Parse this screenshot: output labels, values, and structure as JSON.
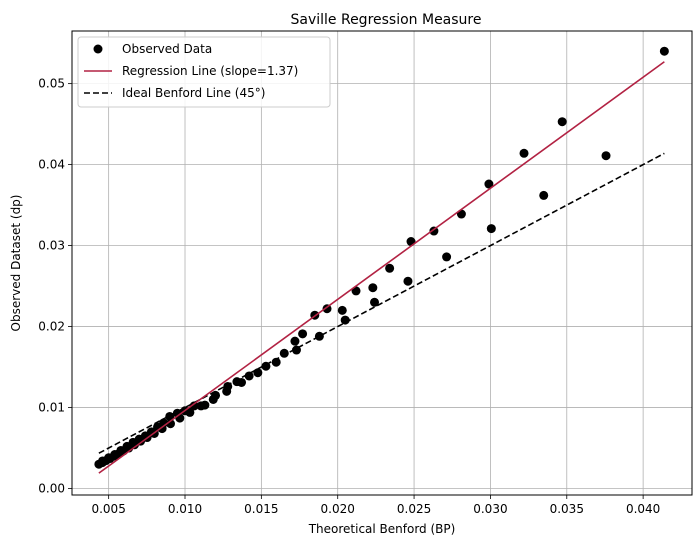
{
  "chart_data": {
    "type": "scatter",
    "title": "Saville Regression Measure",
    "xlabel": "Theoretical Benford (BP)",
    "ylabel": "Observed Dataset (dp)",
    "xlim": [
      0.0026,
      0.0432
    ],
    "ylim": [
      -0.0008,
      0.0565
    ],
    "xticks": [
      0.005,
      0.01,
      0.015,
      0.02,
      0.025,
      0.03,
      0.035,
      0.04
    ],
    "xtick_labels": [
      "0.005",
      "0.010",
      "0.015",
      "0.020",
      "0.025",
      "0.030",
      "0.035",
      "0.040"
    ],
    "yticks": [
      0.0,
      0.01,
      0.02,
      0.03,
      0.04,
      0.05
    ],
    "ytick_labels": [
      "0.00",
      "0.01",
      "0.02",
      "0.03",
      "0.04",
      "0.05"
    ],
    "grid": true,
    "legend_position": "top-left",
    "colors": {
      "points": "#000000",
      "regression": "#b22243",
      "ideal": "#000000",
      "grid": "#b0b0b0"
    },
    "series": [
      {
        "name": "Observed Data",
        "kind": "scatter",
        "x": [
          0.00436,
          0.00459,
          0.00483,
          0.00509,
          0.00537,
          0.00566,
          0.00598,
          0.00632,
          0.00669,
          0.00709,
          0.00752,
          0.00799,
          0.0085,
          0.00905,
          0.00966,
          0.01032,
          0.01105,
          0.01185,
          0.01273,
          0.0137,
          0.01477,
          0.01597,
          0.0173,
          0.0188,
          0.02049,
          0.02241,
          0.0246,
          0.02713,
          0.03006,
          0.03349,
          0.03757,
          0.04139,
          0.0046,
          0.005,
          0.0054,
          0.0058,
          0.0062,
          0.0066,
          0.007,
          0.0074,
          0.0078,
          0.0082,
          0.0086,
          0.009,
          0.0095,
          0.01,
          0.0106,
          0.0113,
          0.012,
          0.0128,
          0.0134,
          0.0142,
          0.0153,
          0.0165,
          0.0172,
          0.0177,
          0.0185,
          0.0193,
          0.0203,
          0.0212,
          0.0223,
          0.0234,
          0.0248,
          0.0263,
          0.0281,
          0.0299,
          0.0322,
          0.0347
        ],
        "y": [
          0.003,
          0.0032,
          0.00345,
          0.0037,
          0.004,
          0.0043,
          0.00465,
          0.005,
          0.0054,
          0.00585,
          0.0063,
          0.0068,
          0.0074,
          0.008,
          0.0087,
          0.0094,
          0.0102,
          0.011,
          0.012,
          0.0131,
          0.0143,
          0.0156,
          0.0171,
          0.0188,
          0.0208,
          0.023,
          0.0256,
          0.0286,
          0.0321,
          0.0362,
          0.0411,
          0.054,
          0.0034,
          0.0038,
          0.0042,
          0.0047,
          0.0052,
          0.0057,
          0.0061,
          0.0065,
          0.007,
          0.0076,
          0.0081,
          0.0089,
          0.0093,
          0.0096,
          0.0102,
          0.0103,
          0.0115,
          0.0126,
          0.0132,
          0.0139,
          0.0151,
          0.0167,
          0.0182,
          0.0191,
          0.0214,
          0.0222,
          0.022,
          0.0244,
          0.0248,
          0.0272,
          0.0305,
          0.0318,
          0.0339,
          0.0376,
          0.0414,
          0.0453
        ]
      },
      {
        "name": "Regression Line (slope=1.37)",
        "kind": "line",
        "style": "solid",
        "x": [
          0.00436,
          0.04139
        ],
        "y": [
          0.0019,
          0.0527
        ]
      },
      {
        "name": "Ideal Benford Line (45°)",
        "kind": "line",
        "style": "dashed",
        "x": [
          0.00436,
          0.04139
        ],
        "y": [
          0.00436,
          0.04139
        ]
      }
    ]
  }
}
